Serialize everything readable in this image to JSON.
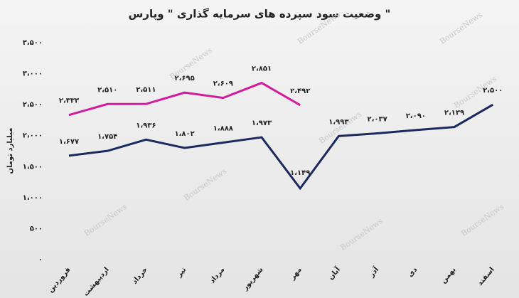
{
  "chart_data": {
    "type": "line",
    "title": "وضعیت سود سپرده های سرمایه گذاری \" وپارس \"",
    "y_label": "میلیارد تومان",
    "watermark": "BourseNews",
    "categories": [
      "فروردین",
      "اردیبهشت",
      "خرداد",
      "تیر",
      "مرداد",
      "شهریور",
      "مهر",
      "آبان",
      "آذر",
      "دی",
      "بهمن",
      "اسفند"
    ],
    "series": [
      {
        "color": "#1b2a5e",
        "values": [
          1677,
          1754,
          1936,
          1802,
          1888,
          1973,
          1149,
          1993,
          2037,
          2090,
          2139,
          2500
        ],
        "value_labels": [
          "۱،۶۷۷",
          "۱،۷۵۴",
          "۱،۹۳۶",
          "۱،۸۰۲",
          "۱،۸۸۸",
          "۱،۹۷۳",
          "۱،۱۴۹",
          "۱،۹۹۳",
          "۲،۰۳۷",
          "۲،۰۹۰",
          "۲،۱۳۹",
          "۲،۵۰۰"
        ]
      },
      {
        "color": "#d4199b",
        "values": [
          2333,
          2510,
          2511,
          2695,
          2609,
          2851,
          2492,
          null,
          null,
          null,
          null,
          null
        ],
        "value_labels": [
          "۲،۳۳۳",
          "۲،۵۱۰",
          "۲،۵۱۱",
          "۲،۶۹۵",
          "۲،۶۰۹",
          "۲،۸۵۱",
          "۲،۴۹۲",
          null,
          null,
          null,
          null,
          null
        ]
      }
    ],
    "ylim": [
      0,
      3500
    ],
    "yticks": [
      {
        "value": 0,
        "label": "۰"
      },
      {
        "value": 500,
        "label": "۵۰۰"
      },
      {
        "value": 1000,
        "label": "۱،۰۰۰"
      },
      {
        "value": 1500,
        "label": "۱،۵۰۰"
      },
      {
        "value": 2000,
        "label": "۲،۰۰۰"
      },
      {
        "value": 2500,
        "label": "۲،۵۰۰"
      },
      {
        "value": 3000,
        "label": "۳،۰۰۰"
      },
      {
        "value": 3500,
        "label": "۳،۵۰۰"
      }
    ],
    "grid": false
  }
}
